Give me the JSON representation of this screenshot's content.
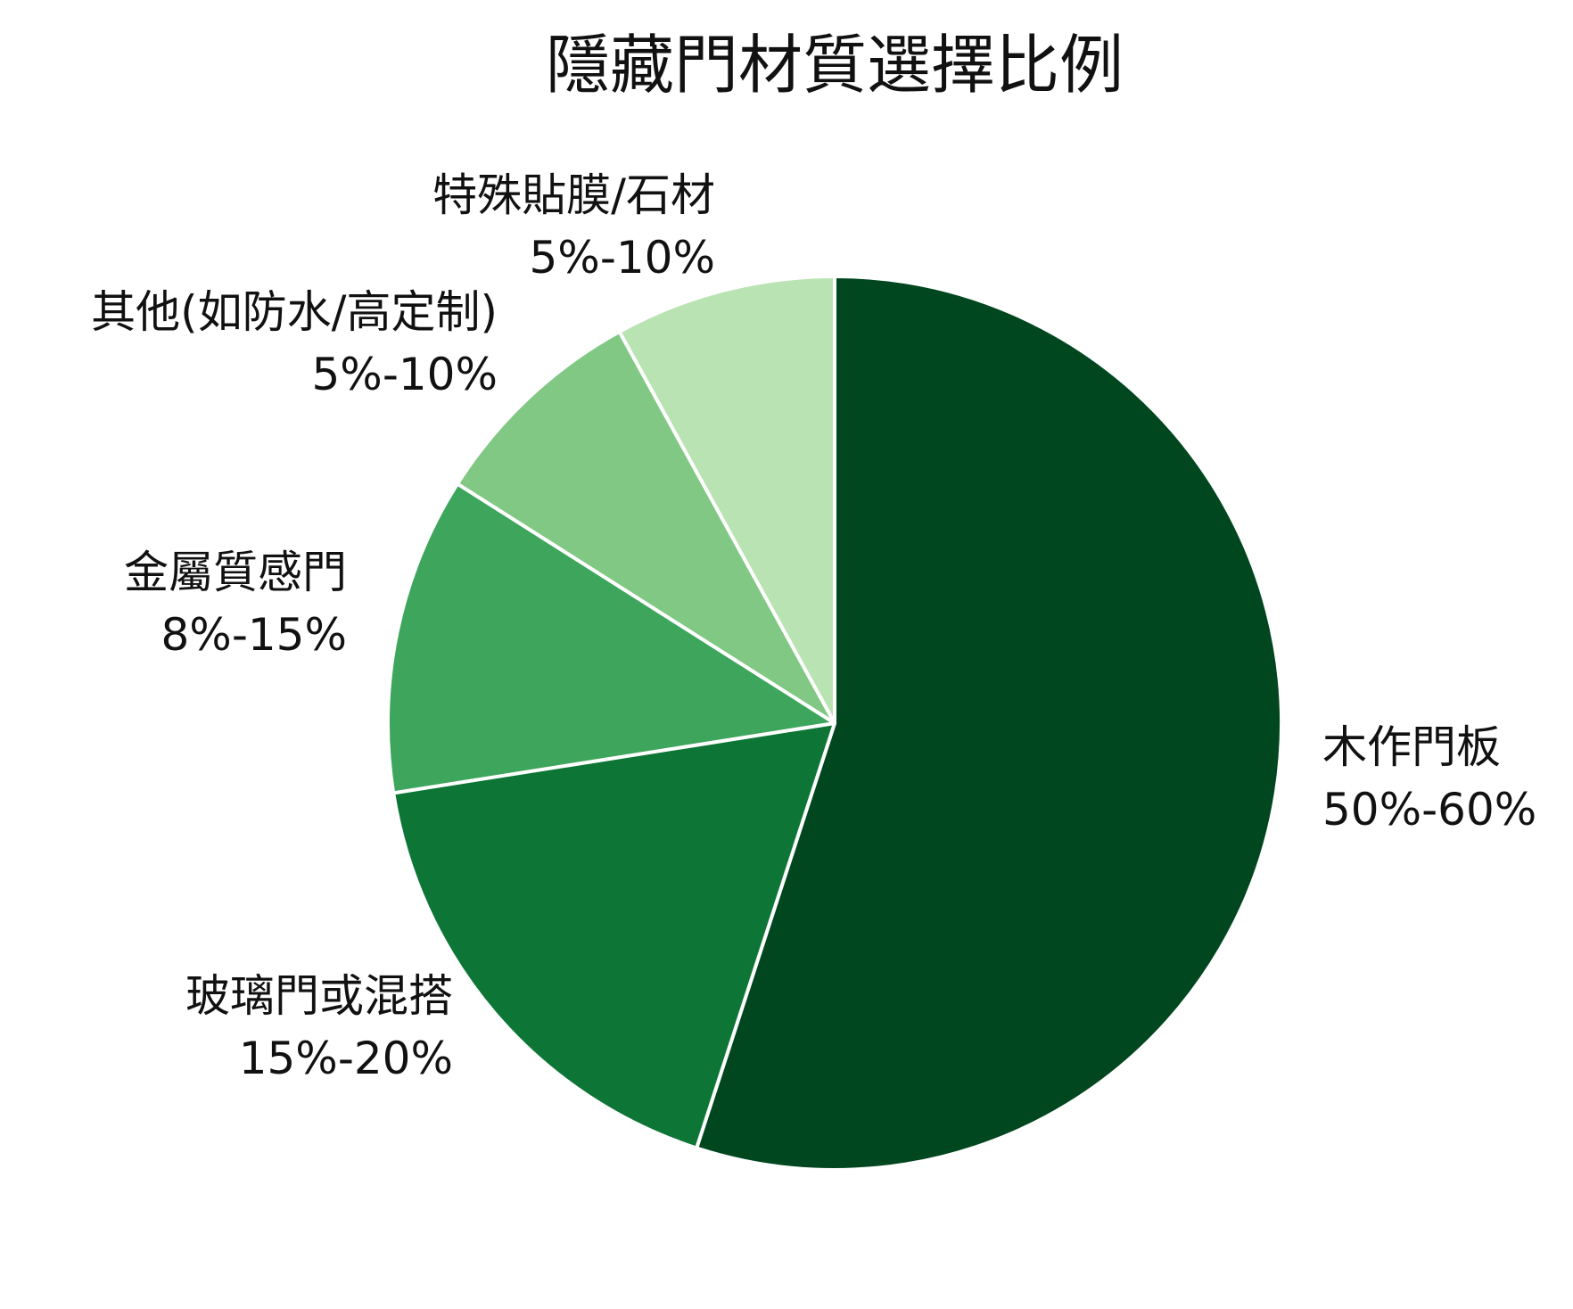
{
  "chart_data": {
    "type": "pie",
    "title": "隱藏門材質選擇比例",
    "start": "12 o'clock",
    "direction": "clockwise",
    "slices": [
      {
        "name": "木作門板",
        "range": "50%-60%",
        "value": 55,
        "color": "#00471f"
      },
      {
        "name": "玻璃門或混搭",
        "range": "15%-20%",
        "value": 17.5,
        "color": "#0d7636"
      },
      {
        "name": "金屬質感門",
        "range": "8%-15%",
        "value": 11.5,
        "color": "#3ea55c"
      },
      {
        "name": "其他(如防水/高定制)",
        "range": "5%-10%",
        "value": 8,
        "color": "#80c883"
      },
      {
        "name": "特殊貼膜/石材",
        "range": "5%-10%",
        "value": 8,
        "color": "#b9e3b2"
      }
    ],
    "edge_color": "#ffffff"
  }
}
